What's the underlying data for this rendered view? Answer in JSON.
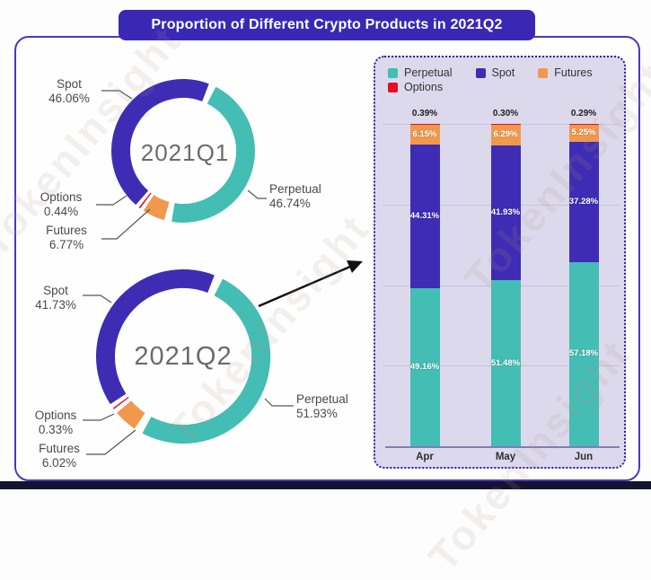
{
  "title": "Proportion of Different Crypto Products in 2021Q2",
  "watermark": "TokenInsight",
  "colors": {
    "banner_bg": "#3a28b5",
    "card_border": "#4b38bb",
    "panel_bg": "#dcd9ec",
    "panel_border": "#2c1da6",
    "perpetual": "#44bdb5",
    "spot": "#3f2cb4",
    "futures": "#f0994d",
    "options": "#e60f23",
    "grid_line": "#c9c5d8",
    "axis_line": "#867cb5",
    "label_text": "#4a4a4a",
    "center_text": "#6b6b6b",
    "bottom_band": "#14132f"
  },
  "chart_data": [
    {
      "type": "pie",
      "subtype": "donut",
      "center_label": "2021Q1",
      "segments": [
        {
          "name": "Perpetual",
          "value": 46.74,
          "label": "46.74%",
          "color": "#44bdb5"
        },
        {
          "name": "Futures",
          "value": 6.77,
          "label": "6.77%",
          "color": "#f0994d"
        },
        {
          "name": "Options",
          "value": 0.44,
          "label": "0.44%",
          "color": "#e60f23"
        },
        {
          "name": "Spot",
          "value": 46.06,
          "label": "46.06%",
          "color": "#3f2cb4"
        }
      ]
    },
    {
      "type": "pie",
      "subtype": "donut",
      "center_label": "2021Q2",
      "segments": [
        {
          "name": "Perpetual",
          "value": 51.93,
          "label": "51.93%",
          "color": "#44bdb5"
        },
        {
          "name": "Futures",
          "value": 6.02,
          "label": "6.02%",
          "color": "#f0994d"
        },
        {
          "name": "Options",
          "value": 0.33,
          "label": "0.33%",
          "color": "#e60f23"
        },
        {
          "name": "Spot",
          "value": 41.73,
          "label": "41.73%",
          "color": "#3f2cb4"
        }
      ]
    },
    {
      "type": "bar",
      "stacked": true,
      "unit": "%",
      "categories": [
        "Apr",
        "May",
        "Jun"
      ],
      "ylim": [
        0,
        100
      ],
      "grid": true,
      "legend_position": "top",
      "series": [
        {
          "name": "Perpetual",
          "color": "#44bdb5",
          "values": [
            49.16,
            51.48,
            57.18
          ],
          "labels": [
            "49.16%",
            "51.48%",
            "57.18%"
          ],
          "label_inside": true
        },
        {
          "name": "Spot",
          "color": "#3f2cb4",
          "values": [
            44.31,
            41.93,
            37.28
          ],
          "labels": [
            "44.31%",
            "41.93%",
            "37.28%"
          ],
          "label_inside": true
        },
        {
          "name": "Futures",
          "color": "#f0994d",
          "values": [
            6.15,
            6.29,
            5.25
          ],
          "labels": [
            "6.15%",
            "6.29%",
            "5.25%"
          ],
          "label_inside": true
        },
        {
          "name": "Options",
          "color": "#e60f23",
          "values": [
            0.39,
            0.3,
            0.29
          ],
          "labels": [
            "0.39%",
            "0.30%",
            "0.29%"
          ],
          "label_inside": false
        }
      ]
    }
  ]
}
